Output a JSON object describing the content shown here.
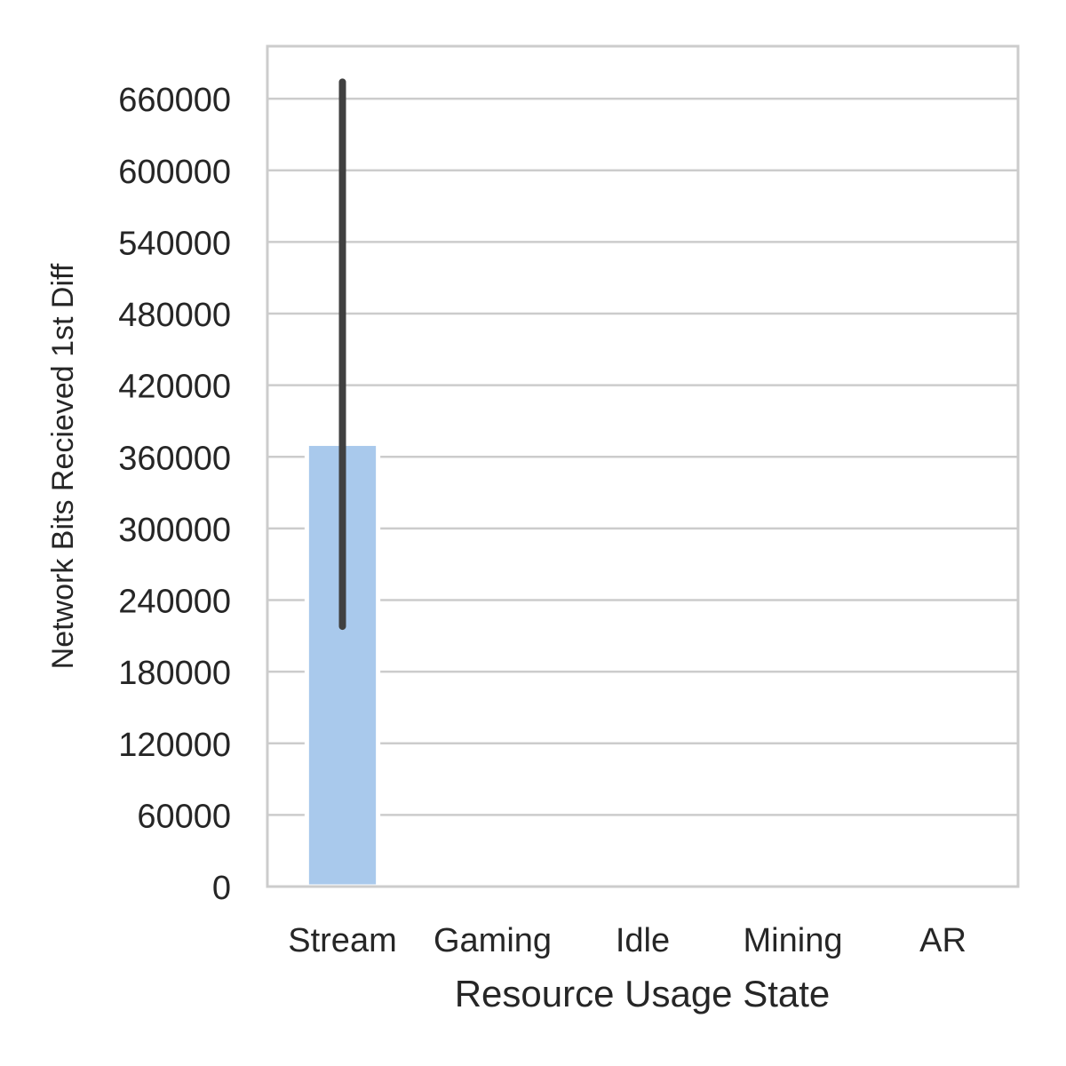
{
  "chart_data": {
    "type": "bar",
    "xlabel": "Resource Usage State",
    "ylabel": "Network Bits Recieved 1st Diff",
    "categories": [
      "Stream",
      "Gaming",
      "Idle",
      "Mining",
      "AR"
    ],
    "values": [
      371000,
      0,
      0,
      0,
      0
    ],
    "error_bars": [
      {
        "category": "Stream",
        "low": 218000,
        "high": 674000
      }
    ],
    "yticks": [
      0,
      60000,
      120000,
      180000,
      240000,
      300000,
      360000,
      420000,
      480000,
      540000,
      600000,
      660000
    ],
    "ylim": [
      0,
      704000
    ],
    "grid": true,
    "colors": {
      "bar": "#a9c9ec",
      "errorbar": "#404040",
      "grid": "#cccccc",
      "spine": "#cccccc"
    }
  }
}
